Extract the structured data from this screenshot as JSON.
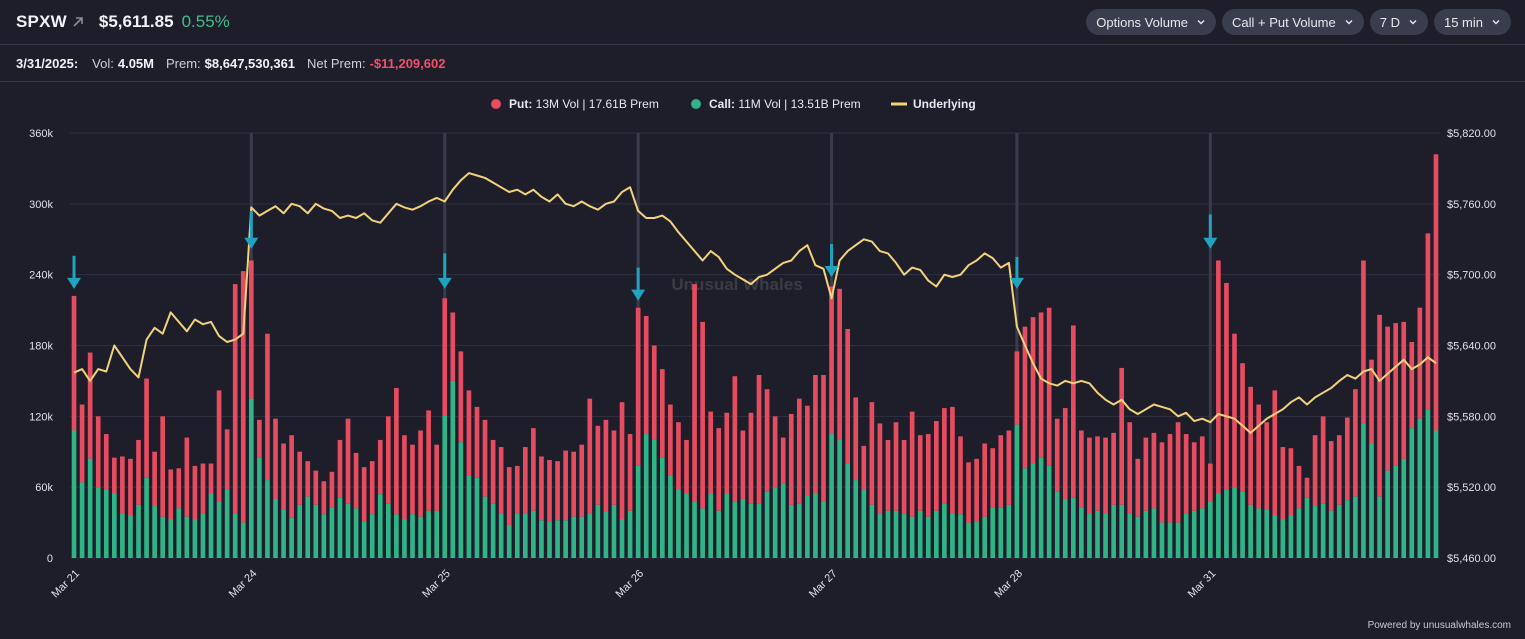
{
  "header": {
    "ticker": "SPXW",
    "price": "$5,611.85",
    "change": "0.55%",
    "controls": [
      {
        "label": "Options Volume"
      },
      {
        "label": "Call + Put Volume"
      },
      {
        "label": "7 D"
      },
      {
        "label": "15 min"
      }
    ]
  },
  "summary": {
    "date": "3/31/2025:",
    "vol_label": "Vol:",
    "vol_value": "4.05M",
    "prem_label": "Prem:",
    "prem_value": "$8,647,530,361",
    "net_prem_label": "Net Prem:",
    "net_prem_value": "-$11,209,602"
  },
  "watermark": "Unusual Whales",
  "footer": "Powered by unusualwhales.com",
  "colors": {
    "put": "#e54c5f",
    "call": "#2fb387",
    "underlying": "#f2d27a",
    "arrow": "#1fa3bf",
    "grid": "#2e3040"
  },
  "chart_data": {
    "type": "bar",
    "legend": [
      {
        "name": "Put:",
        "detail": "13M Vol | 17.61B Prem"
      },
      {
        "name": "Call:",
        "detail": "11M Vol | 13.51B Prem"
      },
      {
        "name": "Underlying",
        "detail": ""
      }
    ],
    "y_left": {
      "ticks": [
        "360k",
        "300k",
        "240k",
        "180k",
        "120k",
        "60k",
        "0"
      ],
      "min": 0,
      "max": 360000
    },
    "y_right": {
      "ticks": [
        "$5,820.00",
        "$5,760.00",
        "$5,700.00",
        "$5,640.00",
        "$5,580.00",
        "$5,520.00",
        "$5,460.00"
      ],
      "min": 5460,
      "max": 5820
    },
    "days": [
      {
        "label": "Mar 21",
        "call": [
          108,
          64,
          84,
          60,
          58,
          55,
          38,
          36,
          45,
          68,
          44,
          35,
          33,
          42,
          35,
          33,
          38,
          55,
          48,
          58,
          38,
          30
        ],
        "total": [
          222,
          130,
          174,
          120,
          105,
          85,
          86,
          84,
          100,
          152,
          90,
          120,
          75,
          76,
          102,
          78,
          80,
          80,
          142,
          109,
          232,
          243
        ],
        "price": [
          5617,
          5620,
          5610,
          5620,
          5618,
          5640,
          5630,
          5620,
          5613,
          5645,
          5655,
          5650,
          5668,
          5660,
          5652,
          5662,
          5658,
          5660,
          5648,
          5643,
          5645,
          5650
        ]
      },
      {
        "label": "Mar 24",
        "call": [
          135,
          85,
          66,
          50,
          41,
          34,
          45,
          52,
          45,
          37,
          43,
          51,
          46,
          42,
          31,
          37,
          54,
          46,
          37,
          33,
          37,
          35,
          40,
          40
        ],
        "total": [
          252,
          117,
          190,
          118,
          97,
          104,
          90,
          82,
          74,
          65,
          73,
          100,
          118,
          89,
          77,
          82,
          100,
          120,
          144,
          104,
          96,
          108,
          125,
          96
        ],
        "price": [
          5757,
          5750,
          5754,
          5758,
          5752,
          5760,
          5758,
          5752,
          5760,
          5756,
          5754,
          5748,
          5750,
          5748,
          5752,
          5746,
          5744,
          5752,
          5760,
          5757,
          5755,
          5758,
          5762,
          5765
        ]
      },
      {
        "label": "Mar 25",
        "call": [
          121,
          150,
          98,
          70,
          68,
          52,
          46,
          38,
          28,
          38,
          38,
          40,
          32,
          31,
          32,
          32,
          35,
          35,
          38,
          45,
          39,
          45,
          33,
          40
        ],
        "total": [
          220,
          208,
          175,
          142,
          128,
          117,
          100,
          94,
          77,
          78,
          94,
          110,
          86,
          83,
          82,
          91,
          90,
          96,
          135,
          112,
          117,
          108,
          132,
          105
        ],
        "price": [
          5762,
          5772,
          5780,
          5786,
          5784,
          5782,
          5778,
          5774,
          5770,
          5772,
          5768,
          5772,
          5766,
          5762,
          5768,
          5760,
          5758,
          5762,
          5758,
          5755,
          5760,
          5762,
          5770,
          5774
        ]
      },
      {
        "label": "Mar 26",
        "call": [
          78,
          105,
          100,
          85,
          70,
          58,
          55,
          48,
          42,
          55,
          40,
          55,
          48,
          50,
          46,
          46,
          56,
          60,
          63,
          45,
          46,
          53,
          55,
          48
        ],
        "total": [
          212,
          205,
          180,
          160,
          130,
          115,
          100,
          232,
          200,
          124,
          110,
          123,
          154,
          108,
          123,
          155,
          143,
          120,
          102,
          122,
          135,
          129,
          155,
          155
        ],
        "price": [
          5754,
          5748,
          5748,
          5750,
          5745,
          5736,
          5728,
          5720,
          5712,
          5720,
          5715,
          5705,
          5700,
          5696,
          5692,
          5698,
          5700,
          5705,
          5710,
          5712,
          5720,
          5725,
          5708,
          5705
        ]
      },
      {
        "label": "Mar 27",
        "call": [
          105,
          100,
          80,
          66,
          58,
          45,
          38,
          40,
          40,
          38,
          35,
          40,
          35,
          40,
          46,
          38,
          37,
          30,
          31,
          35,
          43,
          43,
          45
        ],
        "total": [
          230,
          228,
          194,
          136,
          95,
          132,
          114,
          100,
          115,
          100,
          124,
          104,
          105,
          116,
          127,
          128,
          103,
          81,
          84,
          97,
          93,
          104,
          108
        ],
        "price": [
          5680,
          5712,
          5720,
          5725,
          5730,
          5728,
          5720,
          5718,
          5710,
          5700,
          5706,
          5704,
          5695,
          5690,
          5700,
          5698,
          5700,
          5708,
          5712,
          5718,
          5714,
          5706,
          5710
        ]
      },
      {
        "label": "Mar 28",
        "call": [
          113,
          76,
          80,
          85,
          78,
          56,
          50,
          51,
          43,
          38,
          40,
          38,
          45,
          45,
          38,
          35,
          40,
          42,
          30,
          30,
          30,
          38,
          40,
          42
        ],
        "total": [
          175,
          196,
          204,
          208,
          212,
          118,
          127,
          197,
          108,
          102,
          103,
          102,
          106,
          161,
          115,
          84,
          102,
          106,
          98,
          105,
          115,
          105,
          98,
          103
        ],
        "price": [
          5656,
          5640,
          5625,
          5612,
          5608,
          5606,
          5610,
          5608,
          5610,
          5608,
          5600,
          5594,
          5590,
          5594,
          5586,
          5582,
          5586,
          5590,
          5588,
          5586,
          5580,
          5583,
          5576,
          5578
        ]
      },
      {
        "label": "Mar 31",
        "call": [
          48,
          55,
          58,
          60,
          56,
          45,
          42,
          41,
          36,
          33,
          36,
          42,
          51,
          44,
          46,
          40,
          45,
          49,
          52,
          114,
          97,
          52,
          74,
          78,
          84,
          110,
          118,
          126,
          108
        ],
        "total": [
          80,
          252,
          233,
          190,
          165,
          145,
          130,
          115,
          142,
          94,
          93,
          78,
          68,
          104,
          120,
          99,
          104,
          119,
          143,
          252,
          168,
          206,
          196,
          199,
          200,
          183,
          212,
          275,
          342
        ],
        "price": [
          5575,
          5582,
          5580,
          5578,
          5572,
          5566,
          5572,
          5578,
          5582,
          5586,
          5592,
          5596,
          5590,
          5596,
          5600,
          5604,
          5610,
          5615,
          5612,
          5618,
          5620,
          5610,
          5616,
          5622,
          5628,
          5620,
          5624,
          5630,
          5625
        ]
      }
    ],
    "arrows": [
      {
        "day": 0,
        "bar": 0,
        "top": 228000,
        "bottom": 256000
      },
      {
        "day": 1,
        "bar": 0,
        "top": 262000,
        "bottom": 294000
      },
      {
        "day": 2,
        "bar": 0,
        "top": 228000,
        "bottom": 258000
      },
      {
        "day": 3,
        "bar": 0,
        "top": 218000,
        "bottom": 246000
      },
      {
        "day": 4,
        "bar": 0,
        "top": 238000,
        "bottom": 266000
      },
      {
        "day": 5,
        "bar": 0,
        "top": 228000,
        "bottom": 255000
      },
      {
        "day": 6,
        "bar": 0,
        "top": 262000,
        "bottom": 291000
      }
    ]
  }
}
